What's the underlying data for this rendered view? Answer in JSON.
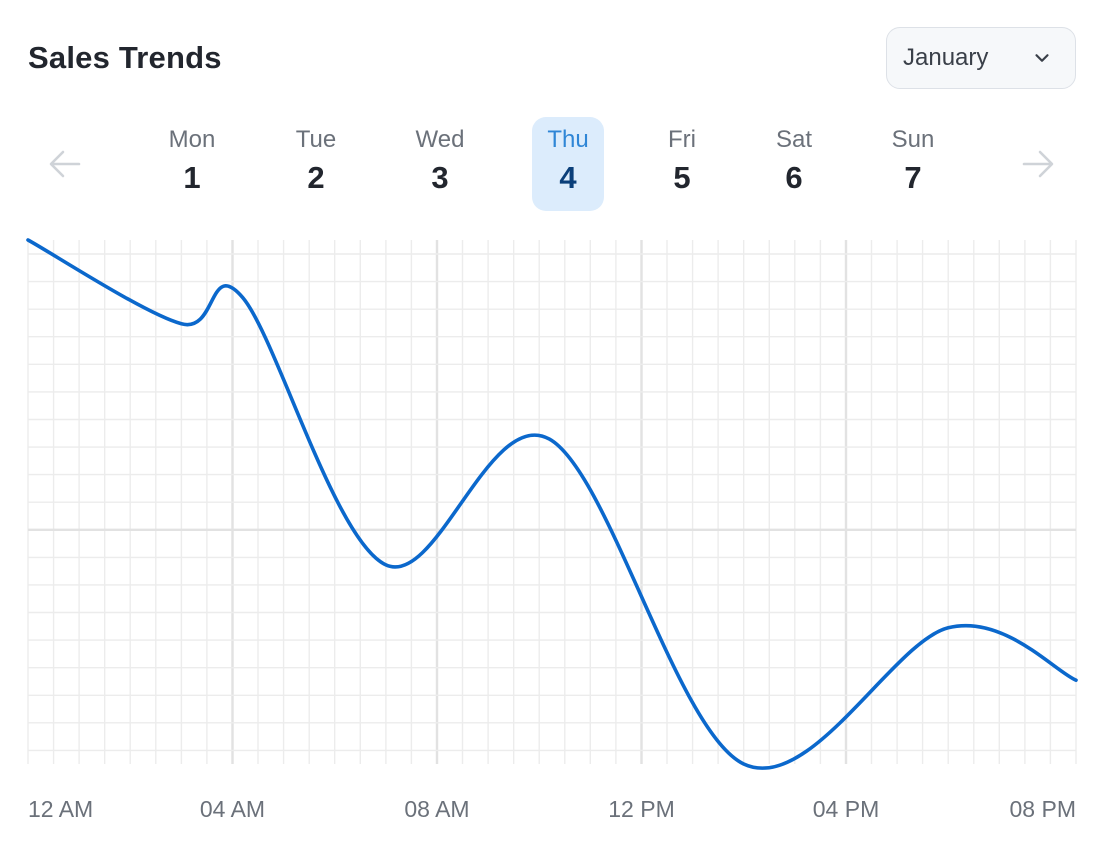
{
  "header": {
    "title": "Sales Trends",
    "month_select": {
      "value": "January",
      "icon": "chevron-down-icon"
    }
  },
  "week_nav": {
    "prev_icon": "arrow-left-icon",
    "next_icon": "arrow-right-icon",
    "days": [
      {
        "name": "Mon",
        "num": "1"
      },
      {
        "name": "Tue",
        "num": "2"
      },
      {
        "name": "Wed",
        "num": "3"
      },
      {
        "name": "Thu",
        "num": "4",
        "active": true
      },
      {
        "name": "Fri",
        "num": "5"
      },
      {
        "name": "Sat",
        "num": "6"
      },
      {
        "name": "Sun",
        "num": "7"
      }
    ]
  },
  "colors": {
    "line": "#0b68cc",
    "grid": "#ececec",
    "grid_major": "#e2e2e2",
    "active_day_bg": "#dcecfc"
  },
  "chart_data": {
    "type": "line",
    "title": "Sales Trends",
    "xlabel": "",
    "ylabel": "",
    "x_tick_labels": [
      "12 AM",
      "04 AM",
      "08 AM",
      "12 PM",
      "04 PM",
      "08 PM"
    ],
    "x_tick_hours": [
      0,
      4,
      8,
      12,
      16,
      20
    ],
    "xlim": [
      0,
      20.5
    ],
    "ylim": [
      0,
      100
    ],
    "grid": true,
    "legend": "none",
    "series": [
      {
        "x": [
          0,
          3,
          4.2,
          7,
          10.2,
          14,
          18,
          20.5
        ],
        "y": [
          100,
          84,
          89,
          38,
          62,
          0,
          26,
          16
        ]
      }
    ]
  }
}
